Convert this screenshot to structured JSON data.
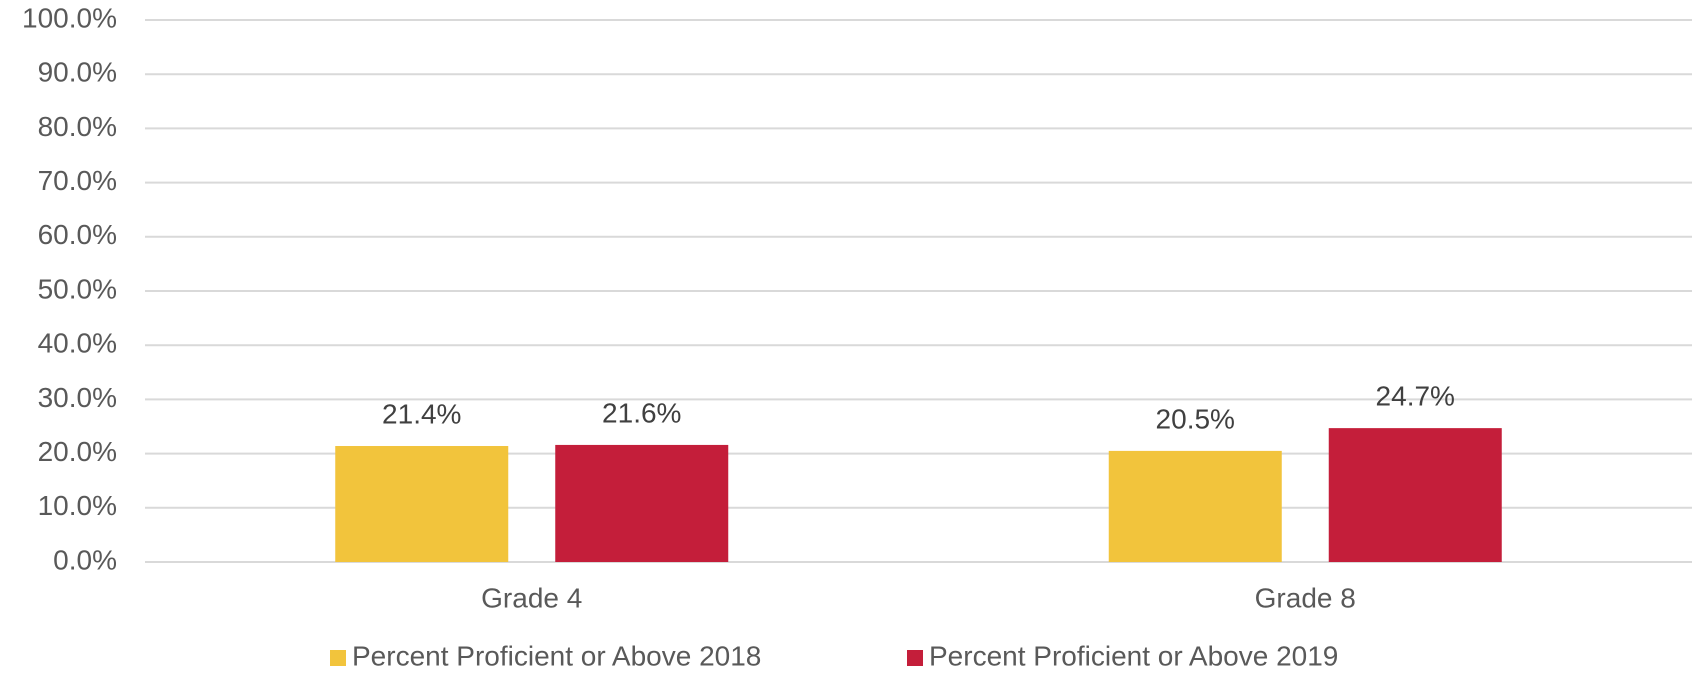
{
  "chart_data": {
    "type": "bar",
    "categories": [
      "Grade 4",
      "Grade 8"
    ],
    "series": [
      {
        "name": "Percent Proficient or Above 2018",
        "color": "#f2c43c",
        "values": [
          21.4,
          20.5
        ],
        "value_labels": [
          "21.4%",
          "20.5%"
        ]
      },
      {
        "name": "Percent Proficient or Above 2019",
        "color": "#c41e3a",
        "values": [
          21.6,
          24.7
        ],
        "value_labels": [
          "21.6%",
          "24.7%"
        ]
      }
    ],
    "ylim": [
      0,
      100
    ],
    "yticks": [
      {
        "value": 0,
        "label": "0.0%"
      },
      {
        "value": 10,
        "label": "10.0%"
      },
      {
        "value": 20,
        "label": "20.0%"
      },
      {
        "value": 30,
        "label": "30.0%"
      },
      {
        "value": 40,
        "label": "40.0%"
      },
      {
        "value": 50,
        "label": "50.0%"
      },
      {
        "value": 60,
        "label": "60.0%"
      },
      {
        "value": 70,
        "label": "70.0%"
      },
      {
        "value": 80,
        "label": "80.0%"
      },
      {
        "value": 90,
        "label": "90.0%"
      },
      {
        "value": 100,
        "label": "100.0%"
      }
    ],
    "grid": true,
    "legend": "bottom"
  }
}
